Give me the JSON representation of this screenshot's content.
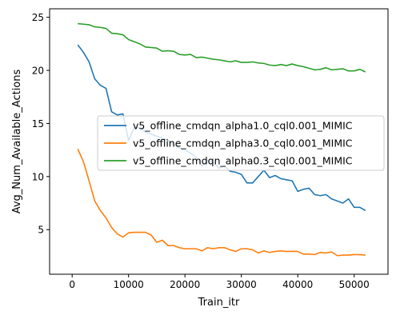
{
  "chart_data": {
    "type": "line",
    "title": "",
    "xlabel": "Train_itr",
    "ylabel": "Avg_Num_Available_Actions",
    "xlim": [
      -4000,
      56000
    ],
    "ylim": [
      0.8,
      25.8
    ],
    "xticks": [
      0,
      10000,
      20000,
      30000,
      40000,
      50000
    ],
    "yticks": [
      5,
      10,
      15,
      20,
      25
    ],
    "grid": false,
    "legend": "center-right",
    "x": [
      1000,
      2000,
      3000,
      4000,
      5000,
      6000,
      7000,
      8000,
      9000,
      10000,
      11000,
      12000,
      13000,
      14000,
      15000,
      16000,
      17000,
      18000,
      19000,
      20000,
      21000,
      22000,
      23000,
      24000,
      25000,
      26000,
      27000,
      28000,
      29000,
      30000,
      31000,
      32000,
      33000,
      34000,
      35000,
      36000,
      37000,
      38000,
      39000,
      40000,
      41000,
      42000,
      43000,
      44000,
      45000,
      46000,
      47000,
      48000,
      49000,
      50000,
      51000,
      52000
    ],
    "series": [
      {
        "name": "v5_offline_cmdqn_alpha1.0_cql0.001_MIMIC",
        "color": "#1f77b4",
        "values": [
          22.4,
          21.7,
          20.8,
          19.2,
          18.6,
          18.3,
          16.1,
          15.8,
          15.9,
          13.4,
          14.6,
          14.6,
          14.2,
          14.0,
          13.8,
          13.6,
          13.4,
          13.0,
          12.7,
          12.5,
          12.2,
          11.8,
          11.0,
          11.5,
          11.4,
          10.8,
          11.0,
          10.5,
          10.4,
          10.2,
          9.4,
          9.4,
          10.0,
          10.6,
          9.9,
          10.1,
          9.8,
          9.7,
          9.6,
          8.6,
          8.8,
          8.9,
          8.3,
          8.2,
          8.3,
          7.9,
          7.7,
          7.5,
          7.9,
          7.1,
          7.1,
          6.8
        ]
      },
      {
        "name": "v5_offline_cmdqn_alpha3.0_cql0.001_MIMIC",
        "color": "#ff7f0e",
        "values": [
          12.6,
          11.4,
          9.6,
          7.7,
          6.8,
          6.1,
          5.2,
          4.6,
          4.3,
          4.7,
          4.75,
          4.75,
          4.75,
          4.5,
          3.8,
          4.0,
          3.5,
          3.5,
          3.3,
          3.2,
          3.2,
          3.2,
          3.0,
          3.3,
          3.2,
          3.3,
          3.3,
          3.1,
          2.95,
          3.2,
          3.2,
          3.1,
          2.8,
          3.0,
          2.85,
          2.95,
          3.0,
          2.95,
          2.95,
          2.95,
          2.7,
          2.7,
          2.65,
          2.85,
          2.8,
          2.9,
          2.55,
          2.6,
          2.6,
          2.65,
          2.65,
          2.6
        ]
      },
      {
        "name": "v5_offline_cmdqn_alpha0.3_cql0.001_MIMIC",
        "color": "#2ca02c",
        "values": [
          24.4,
          24.35,
          24.3,
          24.1,
          24.05,
          23.95,
          23.5,
          23.45,
          23.35,
          22.9,
          22.7,
          22.5,
          22.2,
          22.15,
          22.1,
          21.8,
          21.85,
          21.8,
          21.5,
          21.45,
          21.5,
          21.2,
          21.25,
          21.15,
          21.05,
          21.0,
          20.9,
          20.8,
          20.9,
          20.75,
          20.75,
          20.8,
          20.7,
          20.65,
          20.5,
          20.45,
          20.55,
          20.45,
          20.6,
          20.45,
          20.35,
          20.2,
          20.05,
          20.1,
          20.25,
          20.05,
          20.1,
          20.15,
          19.95,
          19.95,
          20.1,
          19.85
        ]
      }
    ]
  }
}
